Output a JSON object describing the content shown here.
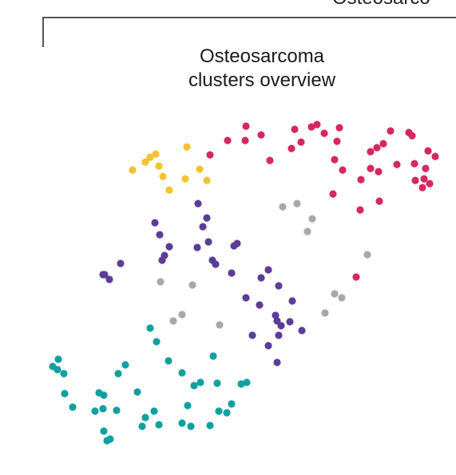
{
  "header": {
    "truncated_label": "Osteosarco"
  },
  "panel": {
    "title_line1": "Osteosarcoma",
    "title_line2": "clusters overview"
  },
  "colors": {
    "pink": "#d4285f",
    "yellow": "#f2c230",
    "purple": "#5b3d96",
    "gray": "#a8a8a8",
    "teal": "#11a0a0"
  },
  "chart_data": {
    "type": "scatter",
    "title": "",
    "xlabel": "",
    "ylabel": "",
    "series": [
      {
        "color": "pink",
        "points": [
          [
            308,
            158
          ],
          [
            327,
            169
          ],
          [
            285,
            176
          ],
          [
            307,
            176
          ],
          [
            263,
            194
          ],
          [
            338,
            201
          ],
          [
            369,
            162
          ],
          [
            390,
            159
          ],
          [
            397,
            156
          ],
          [
            406,
            167
          ],
          [
            425,
            160
          ],
          [
            377,
            178
          ],
          [
            365,
            186
          ],
          [
            422,
            177
          ],
          [
            419,
            200
          ],
          [
            429,
            213
          ],
          [
            417,
            243
          ],
          [
            489,
            164
          ],
          [
            512,
            166
          ],
          [
            516,
            170
          ],
          [
            480,
            180
          ],
          [
            472,
            185
          ],
          [
            464,
            190
          ],
          [
            536,
            189
          ],
          [
            545,
            196
          ],
          [
            497,
            206
          ],
          [
            519,
            205
          ],
          [
            464,
            211
          ],
          [
            474,
            215
          ],
          [
            452,
            225
          ],
          [
            533,
            211
          ],
          [
            531,
            224
          ],
          [
            538,
            230
          ],
          [
            520,
            226
          ],
          [
            529,
            235
          ],
          [
            475,
            252
          ],
          [
            451,
            263
          ],
          [
            446,
            347
          ]
        ]
      },
      {
        "color": "yellow",
        "points": [
          [
            234,
            184
          ],
          [
            195,
            193
          ],
          [
            188,
            197
          ],
          [
            182,
            203
          ],
          [
            199,
            208
          ],
          [
            166,
            213
          ],
          [
            204,
            221
          ],
          [
            250,
            212
          ],
          [
            232,
            224
          ],
          [
            259,
            226
          ],
          [
            212,
            238
          ]
        ]
      },
      {
        "color": "purple",
        "points": [
          [
            248,
            255
          ],
          [
            259,
            273
          ],
          [
            194,
            279
          ],
          [
            254,
            284
          ],
          [
            200,
            294
          ],
          [
            261,
            303
          ],
          [
            212,
            309
          ],
          [
            247,
            310
          ],
          [
            297,
            305
          ],
          [
            293,
            308
          ],
          [
            206,
            320
          ],
          [
            203,
            326
          ],
          [
            266,
            326
          ],
          [
            270,
            331
          ],
          [
            151,
            330
          ],
          [
            131,
            344
          ],
          [
            129,
            344
          ],
          [
            137,
            350
          ],
          [
            290,
            342
          ],
          [
            336,
            338
          ],
          [
            327,
            348
          ],
          [
            349,
            358
          ],
          [
            308,
            373
          ],
          [
            325,
            382
          ],
          [
            366,
            377
          ],
          [
            345,
            395
          ],
          [
            347,
            402
          ],
          [
            363,
            403
          ],
          [
            352,
            408
          ],
          [
            378,
            414
          ],
          [
            316,
            420
          ],
          [
            349,
            420
          ],
          [
            336,
            433
          ],
          [
            347,
            454
          ]
        ]
      },
      {
        "color": "gray",
        "points": [
          [
            372,
            255
          ],
          [
            354,
            259
          ],
          [
            391,
            274
          ],
          [
            385,
            290
          ],
          [
            460,
            319
          ],
          [
            201,
            353
          ],
          [
            241,
            357
          ],
          [
            419,
            368
          ],
          [
            428,
            373
          ],
          [
            407,
            392
          ],
          [
            228,
            394
          ],
          [
            217,
            402
          ],
          [
            275,
            407
          ]
        ]
      },
      {
        "color": "teal",
        "points": [
          [
            188,
            411
          ],
          [
            196,
            428
          ],
          [
            267,
            446
          ],
          [
            73,
            450
          ],
          [
            66,
            459
          ],
          [
            72,
            463
          ],
          [
            80,
            468
          ],
          [
            157,
            457
          ],
          [
            148,
            468
          ],
          [
            211,
            452
          ],
          [
            228,
            467
          ],
          [
            251,
            479
          ],
          [
            243,
            483
          ],
          [
            272,
            480
          ],
          [
            302,
            481
          ],
          [
            309,
            479
          ],
          [
            81,
            493
          ],
          [
            124,
            492
          ],
          [
            130,
            495
          ],
          [
            172,
            491
          ],
          [
            91,
            510
          ],
          [
            129,
            512
          ],
          [
            146,
            514
          ],
          [
            119,
            515
          ],
          [
            193,
            515
          ],
          [
            235,
            508
          ],
          [
            290,
            506
          ],
          [
            274,
            515
          ],
          [
            284,
            517
          ],
          [
            182,
            523
          ],
          [
            178,
            534
          ],
          [
            199,
            532
          ],
          [
            228,
            530
          ],
          [
            239,
            534
          ],
          [
            263,
            533
          ],
          [
            130,
            540
          ],
          [
            138,
            550
          ],
          [
            134,
            552
          ]
        ]
      }
    ]
  }
}
